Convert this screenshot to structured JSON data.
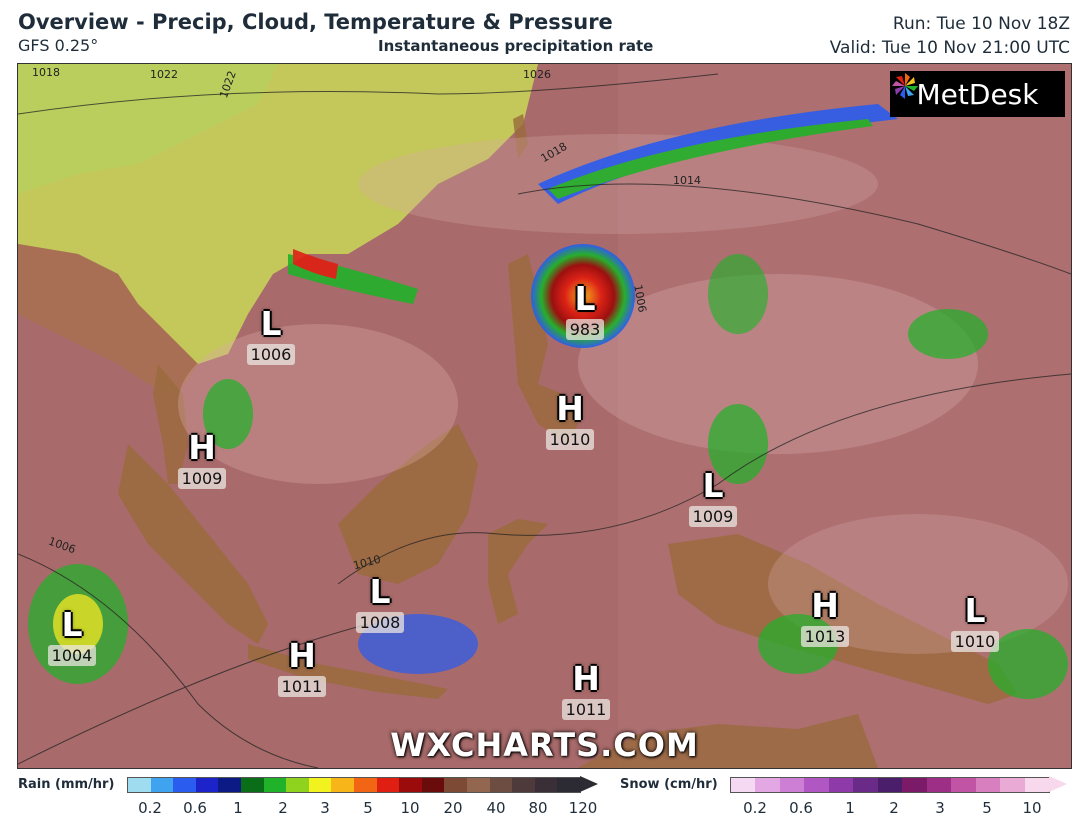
{
  "header": {
    "title": "Overview - Precip, Cloud, Temperature & Pressure",
    "model": "GFS 0.25°",
    "subtitle": "Instantaneous precipitation rate",
    "run": "Run: Tue 10 Nov 18Z",
    "valid": "Valid: Tue 10 Nov 21:00 UTC"
  },
  "logo": {
    "text": "MetDesk",
    "icon": "pinwheel-icon"
  },
  "watermark": "WXCHARTS.COM",
  "pressure_centers": [
    {
      "type": "L",
      "value": "983"
    },
    {
      "type": "L",
      "value": "1006"
    },
    {
      "type": "H",
      "value": "1009"
    },
    {
      "type": "H",
      "value": "1010"
    },
    {
      "type": "L",
      "value": "1009"
    },
    {
      "type": "L",
      "value": "1008"
    },
    {
      "type": "L",
      "value": "1004"
    },
    {
      "type": "H",
      "value": "1011"
    },
    {
      "type": "H",
      "value": "1011"
    },
    {
      "type": "H",
      "value": "1013"
    },
    {
      "type": "L",
      "value": "1010"
    }
  ],
  "isobar_labels": [
    "1018",
    "1022",
    "1022",
    "1026",
    "1018",
    "1014",
    "1006",
    "1010",
    "1006"
  ],
  "legend": {
    "rain": {
      "title": "Rain (mm/hr)",
      "ticks": [
        "0.2",
        "0.6",
        "1",
        "2",
        "3",
        "5",
        "10",
        "20",
        "40",
        "80",
        "120"
      ],
      "colors": [
        "#9fdcef",
        "#3fa3ef",
        "#2a5cef",
        "#1c23c8",
        "#0c1a85",
        "#0a6e18",
        "#20b229",
        "#8fd31f",
        "#f2f21e",
        "#f7b51a",
        "#f26515",
        "#de1f12",
        "#9b0b0b",
        "#6b0c0c",
        "#7d4a36",
        "#93674f",
        "#6d4d42",
        "#4e3a3a",
        "#3a2f36",
        "#2c2a33"
      ]
    },
    "snow": {
      "title": "Snow (cm/hr)",
      "ticks": [
        "0.2",
        "0.6",
        "1",
        "2",
        "3",
        "5",
        "10"
      ],
      "colors": [
        "#f5d9f2",
        "#e3a8e3",
        "#cc7fd5",
        "#b157c4",
        "#8e3aa8",
        "#6a2a88",
        "#4b1e6b",
        "#7b1a66",
        "#9e2f86",
        "#c154a4",
        "#d77fbf",
        "#e9aad6",
        "#f7d8ec"
      ]
    }
  }
}
